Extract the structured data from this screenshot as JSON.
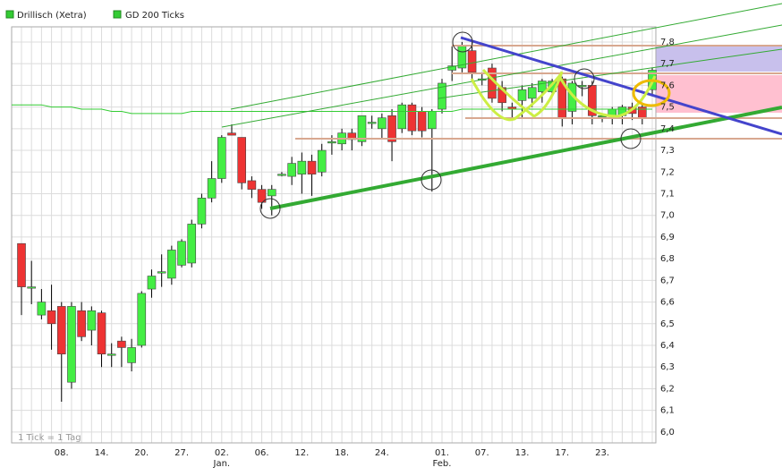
{
  "chart_data": {
    "type": "candlestick",
    "note": "1 Tick = 1 Tag",
    "categories": [
      null,
      null,
      null,
      null,
      "08.",
      null,
      null,
      null,
      "14.",
      null,
      null,
      null,
      "20.",
      null,
      null,
      null,
      "27.",
      null,
      null,
      null,
      "02.",
      null,
      null,
      null,
      "06.",
      null,
      null,
      null,
      "12.",
      null,
      null,
      null,
      "18.",
      null,
      null,
      null,
      "24.",
      null,
      null,
      null,
      null,
      null,
      "01.",
      null,
      null,
      null,
      "07.",
      null,
      null,
      null,
      "13.",
      null,
      null,
      null,
      "17.",
      null,
      null,
      null,
      "23.",
      null,
      null,
      null,
      null,
      null
    ],
    "month_labels": [
      null,
      null,
      null,
      null,
      null,
      null,
      null,
      null,
      null,
      null,
      null,
      null,
      null,
      null,
      null,
      null,
      null,
      null,
      null,
      null,
      "Jan.",
      null,
      null,
      null,
      null,
      null,
      null,
      null,
      null,
      null,
      null,
      null,
      null,
      null,
      null,
      null,
      null,
      null,
      null,
      null,
      null,
      null,
      "Feb.",
      null,
      null,
      null,
      null,
      null,
      null,
      null,
      null,
      null,
      null,
      null,
      null,
      null,
      null,
      null,
      null,
      null,
      null,
      null,
      null,
      null
    ],
    "ylim": [
      5.95,
      7.87
    ],
    "yticks": [
      {
        "value": 6.0,
        "label": "6,0"
      },
      {
        "value": 6.1,
        "label": "6,1"
      },
      {
        "value": 6.2,
        "label": "6,2"
      },
      {
        "value": 6.3,
        "label": "6,3"
      },
      {
        "value": 6.4,
        "label": "6,4"
      },
      {
        "value": 6.5,
        "label": "6,5"
      },
      {
        "value": 6.6,
        "label": "6,6"
      },
      {
        "value": 6.7,
        "label": "6,7"
      },
      {
        "value": 6.8,
        "label": "6,8"
      },
      {
        "value": 6.9,
        "label": "6,9"
      },
      {
        "value": 7.0,
        "label": "7,0"
      },
      {
        "value": 7.1,
        "label": "7,1"
      },
      {
        "value": 7.2,
        "label": "7,2"
      },
      {
        "value": 7.3,
        "label": "7,3"
      },
      {
        "value": 7.4,
        "label": "7,4"
      },
      {
        "value": 7.5,
        "label": "7,5"
      },
      {
        "value": 7.6,
        "label": "7,6"
      },
      {
        "value": 7.7,
        "label": "7,7"
      },
      {
        "value": 7.8,
        "label": "7,8"
      }
    ],
    "grid": true,
    "series": [
      {
        "name": "Drillisch (Xetra)",
        "color": "#33cc33",
        "up_color": "#44ee44",
        "down_color": "#ee3333",
        "open": [
          6.87,
          6.67,
          6.54,
          6.56,
          6.58,
          6.23,
          6.56,
          6.47,
          6.55,
          6.36,
          6.42,
          6.32,
          6.4,
          6.66,
          6.74,
          6.71,
          6.77,
          6.78,
          6.96,
          7.08,
          7.17,
          7.38,
          7.36,
          7.16,
          7.12,
          7.09,
          7.19,
          7.18,
          7.19,
          7.25,
          7.2,
          7.34,
          7.33,
          7.38,
          7.34,
          7.43,
          7.4,
          7.46,
          7.4,
          7.51,
          7.48,
          7.4,
          7.49,
          7.67,
          7.68,
          7.76,
          7.63,
          7.68,
          7.59,
          7.5,
          7.53,
          7.54,
          7.57,
          7.57,
          7.63,
          7.48,
          7.6,
          7.6,
          7.46,
          7.46,
          7.46,
          7.5,
          7.5,
          7.58
        ],
        "high": [
          6.87,
          6.79,
          6.66,
          6.68,
          6.6,
          6.6,
          6.6,
          6.58,
          6.56,
          6.41,
          6.44,
          6.43,
          6.65,
          6.75,
          6.82,
          6.86,
          6.89,
          6.98,
          7.1,
          7.25,
          7.37,
          7.42,
          7.36,
          7.18,
          7.14,
          7.14,
          7.2,
          7.27,
          7.29,
          7.28,
          7.33,
          7.37,
          7.4,
          7.4,
          7.46,
          7.46,
          7.47,
          7.49,
          7.52,
          7.52,
          7.5,
          7.49,
          7.63,
          7.78,
          7.8,
          7.8,
          7.66,
          7.7,
          7.62,
          7.52,
          7.6,
          7.61,
          7.63,
          7.63,
          7.64,
          7.62,
          7.62,
          7.62,
          7.47,
          7.5,
          7.51,
          7.52,
          7.52,
          7.68
        ],
        "low": [
          6.54,
          6.59,
          6.52,
          6.38,
          6.14,
          6.2,
          6.42,
          6.4,
          6.3,
          6.3,
          6.3,
          6.28,
          6.39,
          6.62,
          6.67,
          6.68,
          6.76,
          6.76,
          6.94,
          7.06,
          7.15,
          7.37,
          7.12,
          7.08,
          7.03,
          7.0,
          7.18,
          7.14,
          7.1,
          7.09,
          7.18,
          7.28,
          7.3,
          7.3,
          7.32,
          7.4,
          7.35,
          7.25,
          7.38,
          7.37,
          7.36,
          7.11,
          7.47,
          7.62,
          7.66,
          7.63,
          7.6,
          7.52,
          7.48,
          7.44,
          7.45,
          7.5,
          7.52,
          7.55,
          7.41,
          7.42,
          7.55,
          7.42,
          7.43,
          7.42,
          7.42,
          7.44,
          7.42,
          7.55
        ],
        "close": [
          6.67,
          6.67,
          6.6,
          6.5,
          6.36,
          6.58,
          6.44,
          6.56,
          6.36,
          6.36,
          6.39,
          6.39,
          6.64,
          6.72,
          6.74,
          6.84,
          6.88,
          6.96,
          7.08,
          7.17,
          7.36,
          7.37,
          7.15,
          7.12,
          7.06,
          7.12,
          7.19,
          7.24,
          7.25,
          7.19,
          7.3,
          7.34,
          7.38,
          7.35,
          7.46,
          7.43,
          7.45,
          7.34,
          7.51,
          7.39,
          7.39,
          7.48,
          7.61,
          7.69,
          7.78,
          7.66,
          7.63,
          7.54,
          7.52,
          7.49,
          7.58,
          7.59,
          7.62,
          7.62,
          7.45,
          7.61,
          7.6,
          7.46,
          7.46,
          7.49,
          7.5,
          7.47,
          7.45,
          7.67
        ]
      },
      {
        "name": "GD 200 Ticks",
        "type": "line",
        "color": "#33cc33",
        "values": [
          7.51,
          7.51,
          7.51,
          7.5,
          7.5,
          7.5,
          7.49,
          7.49,
          7.49,
          7.48,
          7.48,
          7.47,
          7.47,
          7.47,
          7.47,
          7.47,
          7.47,
          7.48,
          7.48,
          7.48,
          7.48,
          7.48,
          7.48,
          7.48,
          7.48,
          7.48,
          7.48,
          7.48,
          7.48,
          7.48,
          7.48,
          7.48,
          7.48,
          7.48,
          7.48,
          7.48,
          7.48,
          7.48,
          7.48,
          7.48,
          7.48,
          7.48,
          7.48,
          7.48,
          7.49,
          7.49,
          7.49,
          7.49,
          7.49,
          7.49,
          7.49,
          7.49,
          7.49,
          7.49,
          7.49,
          7.49,
          7.49,
          7.49,
          7.49,
          7.49,
          7.49,
          7.49,
          7.49,
          7.49
        ]
      }
    ]
  }
}
